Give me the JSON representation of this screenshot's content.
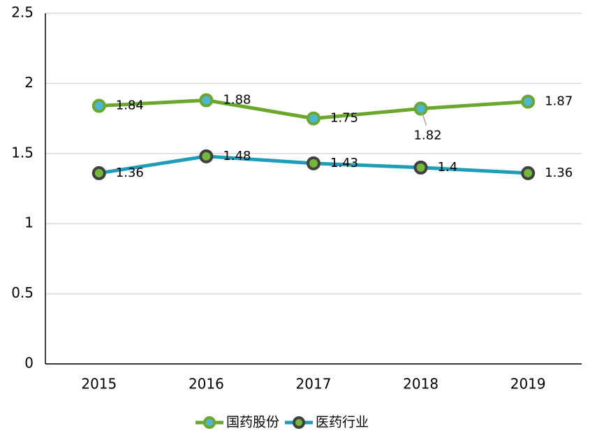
{
  "chart_data": {
    "type": "line",
    "categories": [
      "2015",
      "2016",
      "2017",
      "2018",
      "2019"
    ],
    "series": [
      {
        "name": "国药股份",
        "color": "#6aa72c",
        "marker_fill": "#4bb6d6",
        "values": [
          1.84,
          1.88,
          1.75,
          1.82,
          1.87
        ]
      },
      {
        "name": "医药行业",
        "color": "#1f9cb8",
        "marker_fill": "#74b83a",
        "marker_edge": "#404040",
        "values": [
          1.36,
          1.48,
          1.43,
          1.4,
          1.36
        ]
      }
    ],
    "ylim": [
      0,
      2.5
    ],
    "yticks": [
      0,
      0.5,
      1,
      1.5,
      2,
      2.5
    ],
    "grid": true,
    "legend": "bottom"
  }
}
